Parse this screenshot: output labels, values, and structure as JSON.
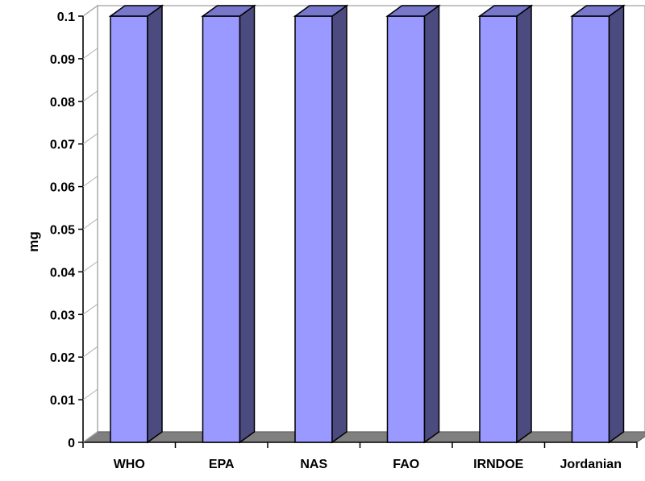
{
  "colors": {
    "bar_front": "#9999ff",
    "bar_side": "#4b4b7f",
    "bar_top": "#7777cc",
    "floor": "#808080",
    "wall": "#ffffff",
    "axis": "#000000"
  },
  "chart_data": {
    "type": "bar",
    "style": "3d-column",
    "categories": [
      "WHO",
      "EPA",
      "NAS",
      "FAO",
      "IRNDOE",
      "Jordanian"
    ],
    "values": [
      0.1,
      0.1,
      0.1,
      0.1,
      0.1,
      0.1
    ],
    "title": "",
    "xlabel": "",
    "ylabel": "mg",
    "ylim": [
      0,
      0.1
    ],
    "yticks": [
      "0",
      "0.01",
      "0.02",
      "0.03",
      "0.04",
      "0.05",
      "0.06",
      "0.07",
      "0.08",
      "0.09",
      "0.1"
    ],
    "grid": false,
    "legend": "none"
  }
}
